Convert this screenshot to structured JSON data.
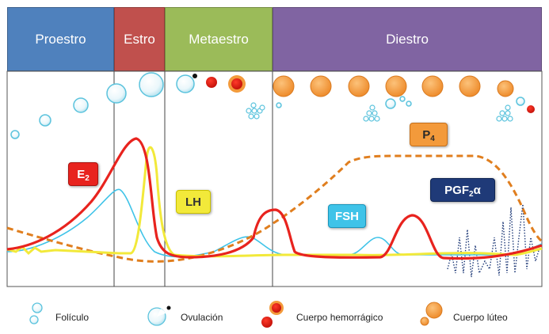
{
  "phases": {
    "proestro": {
      "label": "Proestro",
      "color": "#4f81bd"
    },
    "estro": {
      "label": "Estro",
      "color": "#c0504d"
    },
    "metaestro": {
      "label": "Metaestro",
      "color": "#9bbb59"
    },
    "diestro": {
      "label": "Diestro",
      "color": "#8064a2"
    }
  },
  "hormones": {
    "e2": {
      "label": "E",
      "sub": "2",
      "color": "#e8231e"
    },
    "lh": {
      "label": "LH",
      "color": "#f2e93a"
    },
    "p4": {
      "label": "P",
      "sub": "4",
      "color": "#f39a3b"
    },
    "fsh": {
      "label": "FSH",
      "color": "#3fc3e8"
    },
    "pgf2a": {
      "label": "PGF",
      "sub": "2",
      "suffix": "α",
      "color": "#1f3a78"
    }
  },
  "legend": {
    "foliculo": "Folículo",
    "ovulacion": "Ovulación",
    "cuerpo_hemorragico": "Cuerpo hemorrágico",
    "cuerpo_luteo": "Cuerpo lúteo"
  }
}
